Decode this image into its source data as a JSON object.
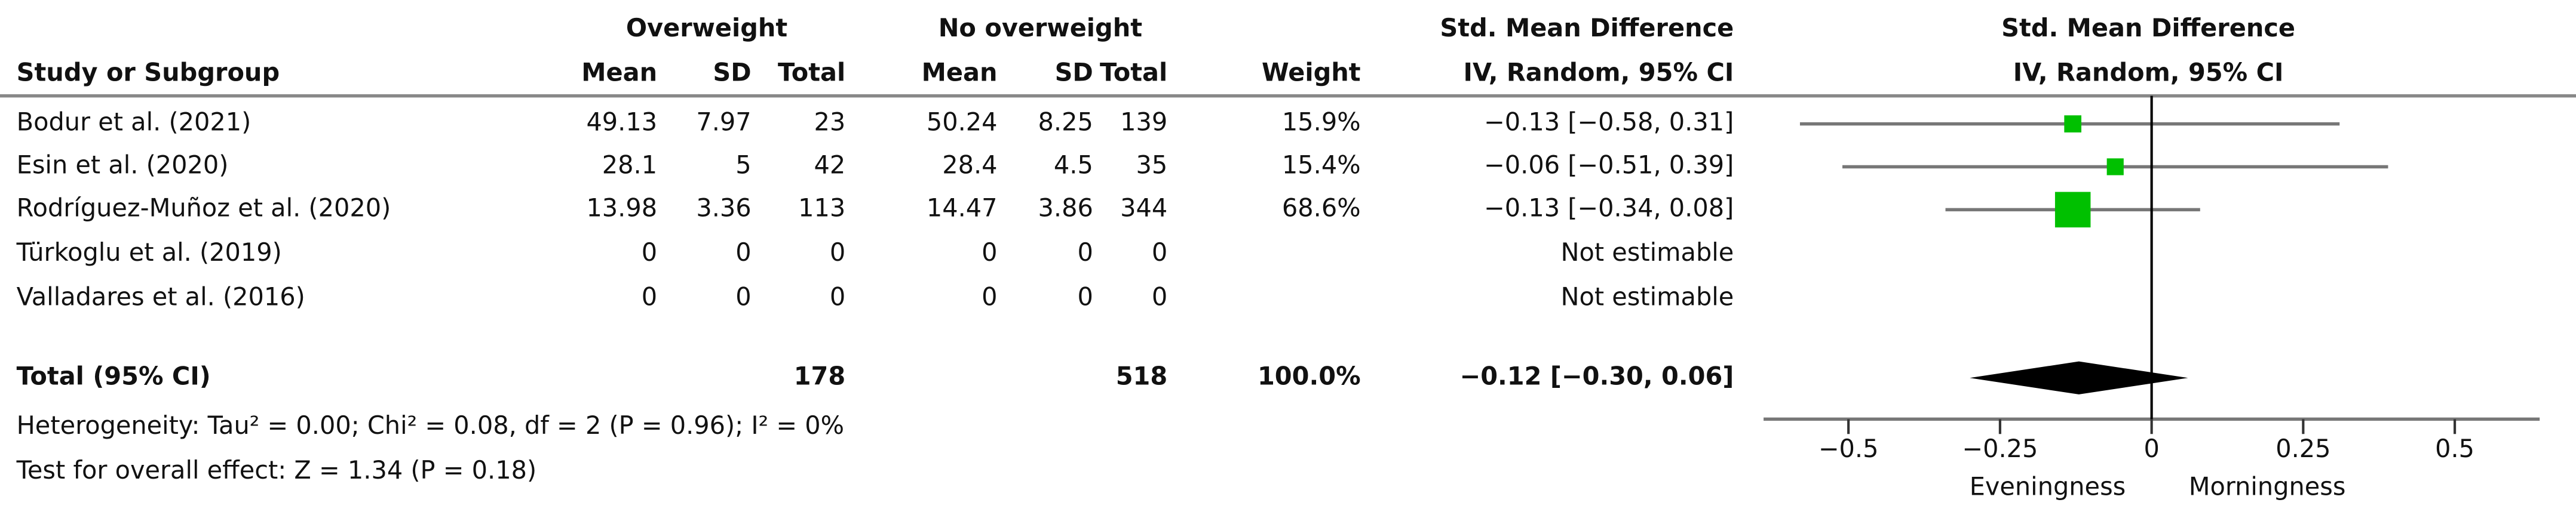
{
  "chart_data": {
    "type": "forest",
    "group_headers": [
      "Overweight",
      "No overweight"
    ],
    "columns": [
      "Study or Subgroup",
      "Mean",
      "SD",
      "Total",
      "Mean",
      "SD",
      "Total",
      "Weight"
    ],
    "effect_header": [
      "Std. Mean Difference",
      "IV, Random, 95% CI"
    ],
    "plot_header": [
      "Std. Mean Difference",
      "IV, Random, 95% CI"
    ],
    "studies": [
      {
        "name": "Bodur et al. (2021)",
        "cells": [
          49.13,
          7.97,
          23,
          50.24,
          8.25,
          139
        ],
        "weight": 15.9,
        "weight_label": "15.9%",
        "ci_label": "−0.13 [−0.58, 0.31]",
        "estimate": -0.13,
        "ci": [
          -0.58,
          0.31
        ]
      },
      {
        "name": "Esin et al. (2020)",
        "cells": [
          28.1,
          5,
          42,
          28.4,
          4.5,
          35
        ],
        "weight": 15.4,
        "weight_label": "15.4%",
        "ci_label": "−0.06 [−0.51, 0.39]",
        "estimate": -0.06,
        "ci": [
          -0.51,
          0.39
        ]
      },
      {
        "name": "Rodríguez-Muñoz et al. (2020)",
        "cells": [
          13.98,
          3.36,
          113,
          14.47,
          3.86,
          344
        ],
        "weight": 68.6,
        "weight_label": "68.6%",
        "ci_label": "−0.13 [−0.34, 0.08]",
        "estimate": -0.13,
        "ci": [
          -0.34,
          0.08
        ]
      },
      {
        "name": "Türkoglu et al. (2019)",
        "cells": [
          0,
          0,
          0,
          0,
          0,
          0
        ],
        "weight": null,
        "weight_label": null,
        "ci_label": "Not estimable",
        "estimate": null,
        "ci": null
      },
      {
        "name": "Valladares et al. (2016)",
        "cells": [
          0,
          0,
          0,
          0,
          0,
          0
        ],
        "weight": null,
        "weight_label": null,
        "ci_label": "Not estimable",
        "estimate": null,
        "ci": null
      }
    ],
    "total": {
      "name": "Total (95% CI)",
      "n1": 178,
      "n2": 518,
      "weight_label": "100.0%",
      "ci_label": "−0.12 [−0.30, 0.06]",
      "estimate": -0.12,
      "ci": [
        -0.3,
        0.06
      ]
    },
    "heterogeneity": "Heterogeneity: Tau² = 0.00; Chi² = 0.08, df = 2 (P = 0.96); I² = 0%",
    "overall_effect": "Test for overall effect: Z = 1.34 (P = 0.18)",
    "xlim": [
      -0.64,
      0.64
    ],
    "xticks": [
      {
        "value": -0.5,
        "label": "−0.5"
      },
      {
        "value": -0.25,
        "label": "−0.25"
      },
      0,
      0.25,
      0.5
    ],
    "x_labels": [
      "Eveningness",
      "Morningness"
    ],
    "color": "#00c000"
  }
}
